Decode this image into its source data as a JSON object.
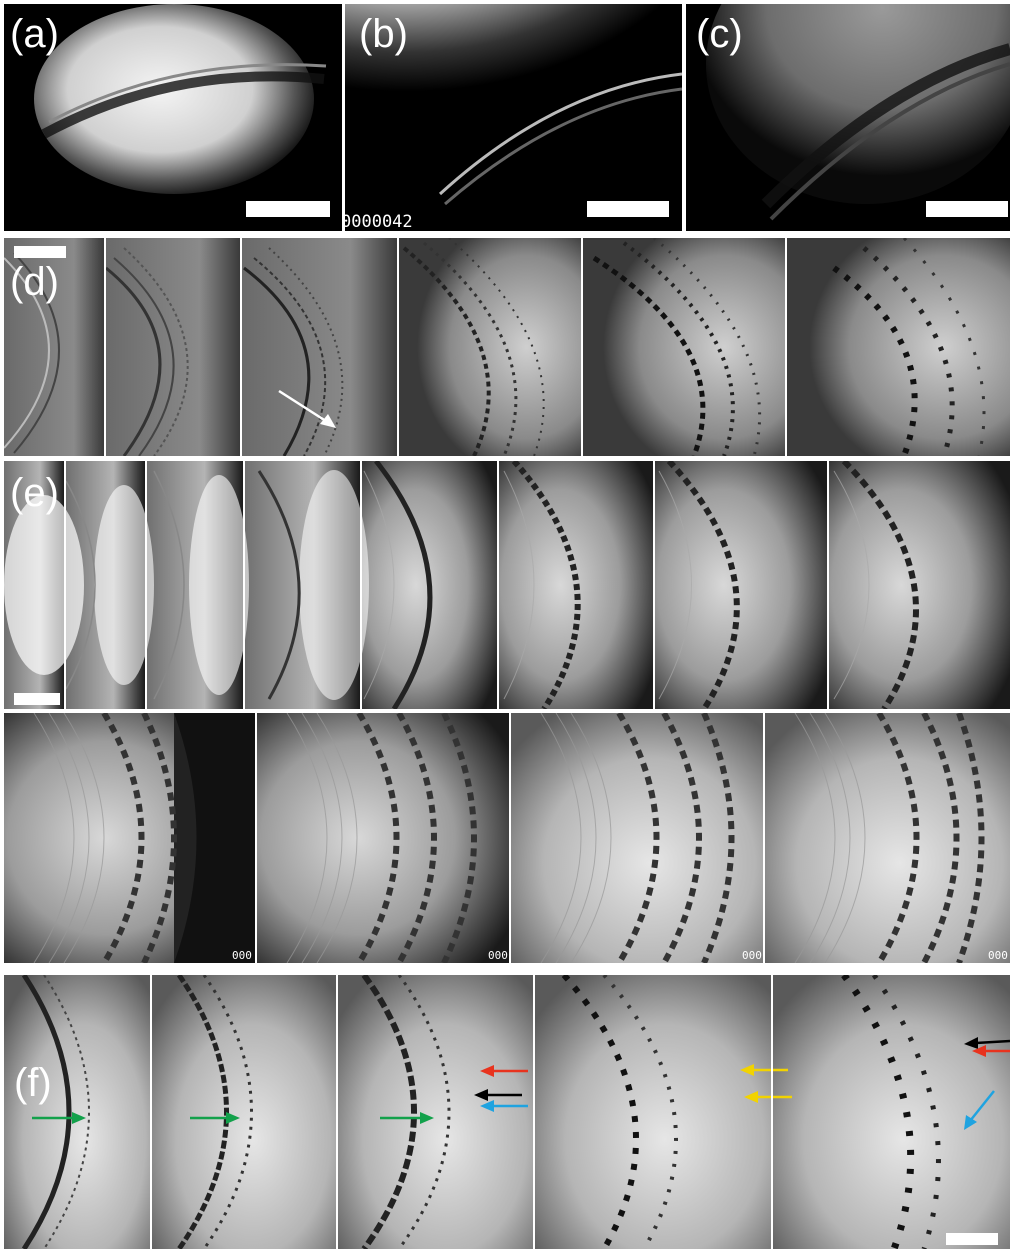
{
  "figure": {
    "labels": {
      "a": "(a)",
      "b": "(b)",
      "c": "(c)",
      "d": "(d)",
      "e": "(e)",
      "f": "(f)"
    },
    "timestamp_b": "0000042",
    "timestamp_e_partial": "000"
  },
  "colors": {
    "green_arrow": "#12a14b",
    "red_arrow": "#e8331e",
    "black_arrow": "#000000",
    "blue_arrow": "#1fa3e0",
    "yellow_arrow": "#f2d300",
    "white_arrow": "#ffffff"
  },
  "icons": [
    "arrow-icon",
    "scale-bar"
  ]
}
